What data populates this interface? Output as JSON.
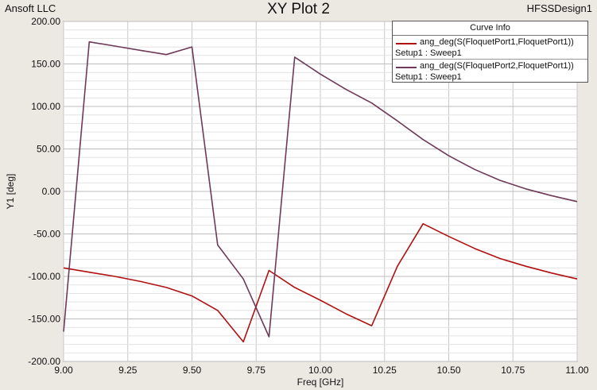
{
  "header": {
    "company": "Ansoft LLC",
    "title": "XY Plot 2",
    "design": "HFSSDesign1"
  },
  "colors": {
    "background": "#ece9e3",
    "plot_area": "#ffffff",
    "grid": "#c8c8c8",
    "series1": "#b01010",
    "series2": "#6e3a58"
  },
  "chart_data": {
    "type": "line",
    "xlabel": "Freq [GHz]",
    "ylabel": "Y1 [deg]",
    "xlim": [
      9.0,
      11.0
    ],
    "ylim": [
      -200,
      200
    ],
    "xticks": [
      "9.00",
      "9.25",
      "9.50",
      "9.75",
      "10.00",
      "10.25",
      "10.50",
      "10.75",
      "11.00"
    ],
    "yticks": [
      "200.00",
      "150.00",
      "100.00",
      "50.00",
      "0.00",
      "-50.00",
      "-100.00",
      "-150.00",
      "-200.00"
    ],
    "grid": true,
    "legend_title": "Curve Info",
    "legend_position": "top-right",
    "series": [
      {
        "name": "ang_deg(S(FloquetPort1,FloquetPort1))",
        "setup": "Setup1 : Sweep1",
        "color": "#b01010",
        "x": [
          9.0,
          9.1,
          9.2,
          9.3,
          9.4,
          9.5,
          9.6,
          9.7,
          9.8,
          9.9,
          10.0,
          10.1,
          10.2,
          10.3,
          10.4,
          10.5,
          10.6,
          10.7,
          10.8,
          10.9,
          11.0
        ],
        "y": [
          -90,
          -95,
          -100,
          -106,
          -113,
          -123,
          -140,
          -177,
          -93,
          -113,
          -128,
          -144,
          -158,
          -88,
          -38,
          -53,
          -67,
          -79,
          -88,
          -96,
          -103
        ]
      },
      {
        "name": "ang_deg(S(FloquetPort2,FloquetPort1))",
        "setup": "Setup1 : Sweep1",
        "color": "#6e3a58",
        "x": [
          9.0,
          9.1,
          9.2,
          9.3,
          9.4,
          9.5,
          9.6,
          9.7,
          9.8,
          9.9,
          10.0,
          10.1,
          10.2,
          10.3,
          10.4,
          10.5,
          10.6,
          10.7,
          10.8,
          10.9,
          11.0
        ],
        "y": [
          -165,
          176,
          171,
          166,
          161,
          170,
          -63,
          -103,
          -171,
          158,
          138,
          120,
          104,
          83,
          61,
          42,
          26,
          13,
          3,
          -5,
          -12
        ]
      }
    ]
  }
}
